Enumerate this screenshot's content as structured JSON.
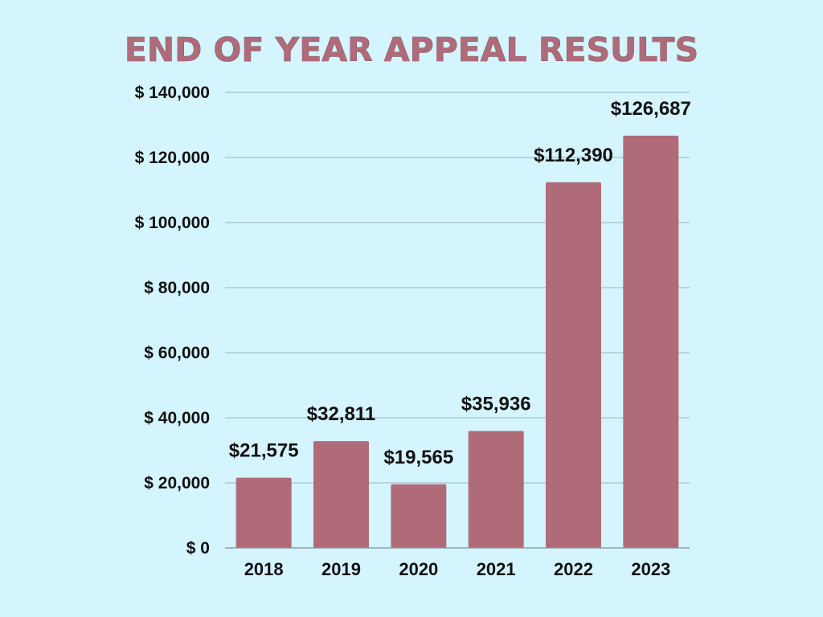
{
  "chart_data": {
    "type": "bar",
    "title": "END OF YEAR APPEAL RESULTS",
    "categories": [
      "2018",
      "2019",
      "2020",
      "2021",
      "2022",
      "2023"
    ],
    "values": [
      21575,
      32811,
      19565,
      35936,
      112390,
      126687
    ],
    "data_labels": [
      "$21,575",
      "$32,811",
      "$19,565",
      "$35,936",
      "$112,390",
      "$126,687"
    ],
    "y_ticks": [
      0,
      20000,
      40000,
      60000,
      80000,
      100000,
      120000,
      140000
    ],
    "y_tick_labels": [
      "$ 0",
      "$ 20,000",
      "$ 40,000",
      "$ 60,000",
      "$ 80,000",
      "$ 100,000",
      "$ 120,000",
      "$ 140,000"
    ],
    "ylim": [
      0,
      140000
    ],
    "xlabel": "",
    "ylabel": "",
    "grid": true,
    "legend": "none",
    "colors": {
      "background": "#d4f4fe",
      "bar": "#b06b79",
      "title": "#b06b79"
    }
  }
}
